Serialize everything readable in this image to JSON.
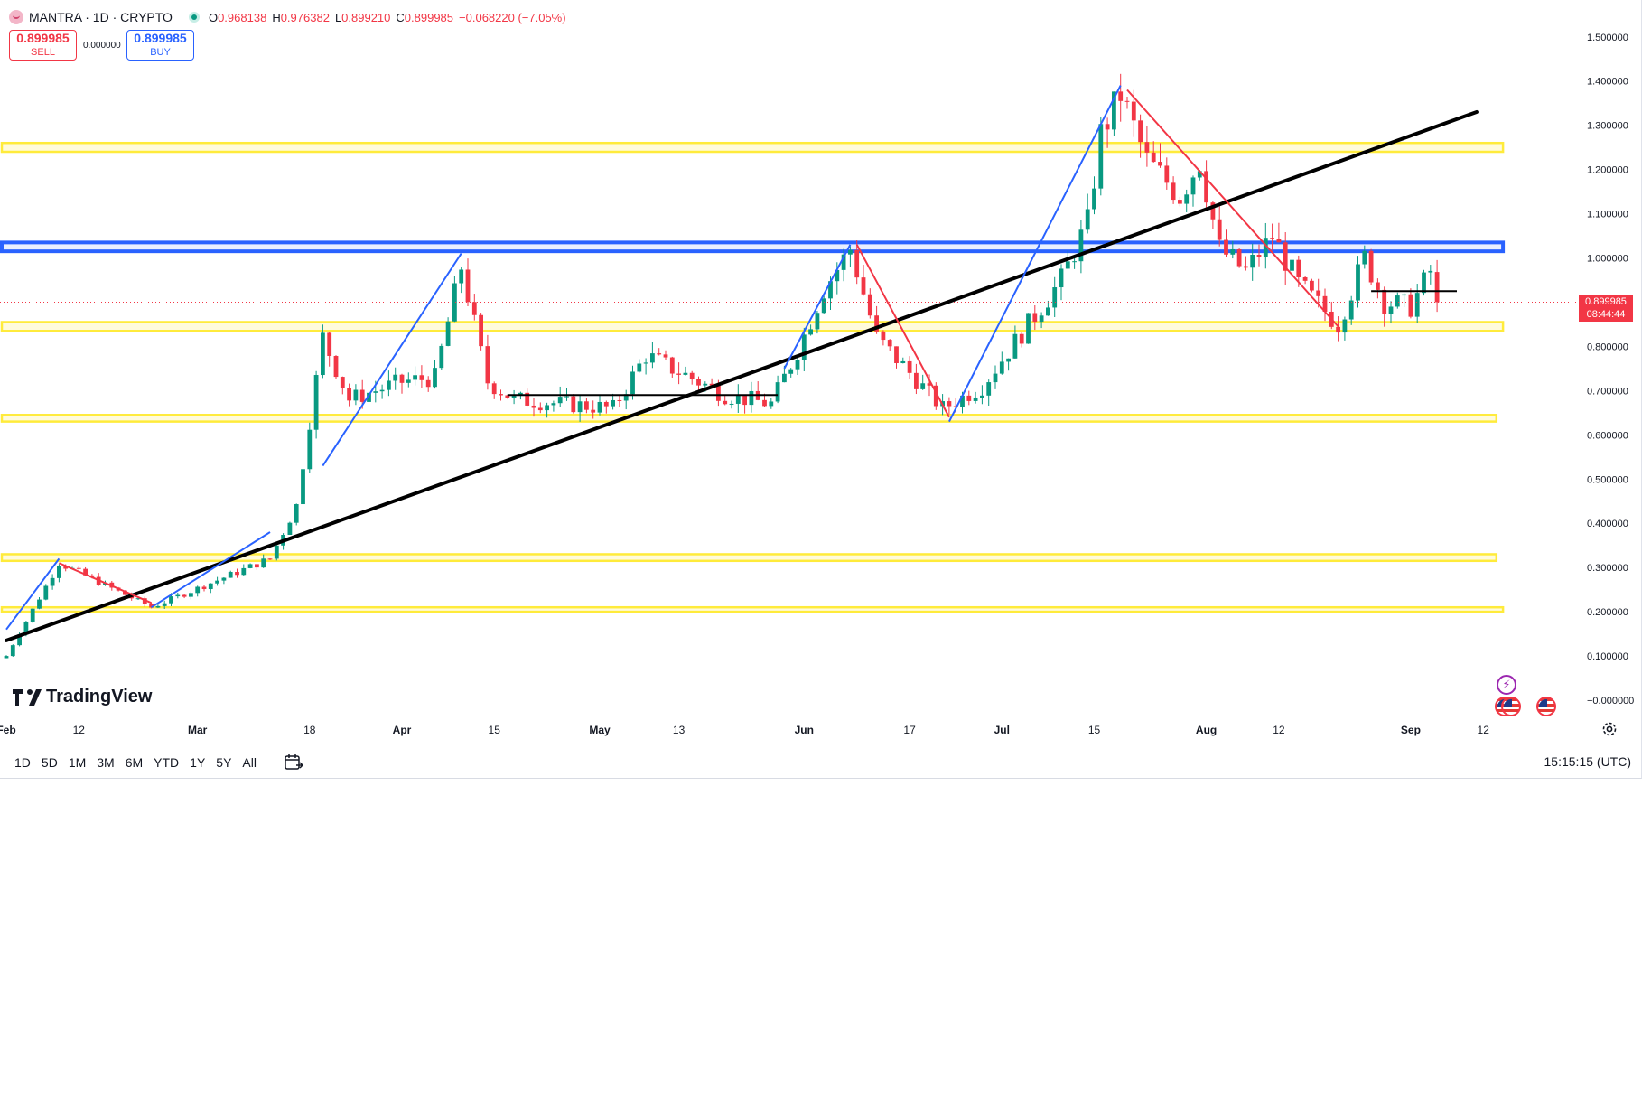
{
  "header": {
    "symbol": "MANTRA · 1D · CRYPTO",
    "ohlc": [
      {
        "k": "O",
        "v": "0.968138"
      },
      {
        "k": "H",
        "v": "0.976382"
      },
      {
        "k": "L",
        "v": "0.899210"
      },
      {
        "k": "C",
        "v": "0.899985"
      },
      {
        "k": "",
        "v": "−0.068220 (−7.05%)"
      }
    ]
  },
  "trade": {
    "sell_price": "0.899985",
    "sell_label": "SELL",
    "buy_price": "0.899985",
    "buy_label": "BUY",
    "spread": "0.000000"
  },
  "price_tag": {
    "price": "0.899985",
    "countdown": "08:44:44"
  },
  "logo": "TradingView",
  "toolbar": {
    "ranges": [
      "1D",
      "5D",
      "1M",
      "3M",
      "6M",
      "YTD",
      "1Y",
      "5Y",
      "All"
    ],
    "clock": "15:15:15 (UTC)"
  },
  "colors": {
    "up": "#089981",
    "down": "#f23645",
    "zone": "#ffeb3b",
    "resistance": "#2962ff",
    "trend": "#000000"
  },
  "icons": [
    "calendar-range-icon",
    "gear-icon",
    "lightning-event-icon",
    "us-flag-event-icon"
  ],
  "chart_data": {
    "type": "candlestick",
    "y_ticks": [
      "1.500000",
      "1.400000",
      "1.300000",
      "1.200000",
      "1.100000",
      "1.000000",
      "0.900000",
      "0.800000",
      "0.700000",
      "0.600000",
      "0.500000",
      "0.400000",
      "0.300000",
      "0.200000",
      "0.100000",
      "−0.000000"
    ],
    "ylim": [
      -0.05,
      1.55
    ],
    "x_ticks": [
      {
        "label": "Feb",
        "date": "2024-02-01"
      },
      {
        "label": "12",
        "date": "2024-02-12"
      },
      {
        "label": "Mar",
        "date": "2024-03-01"
      },
      {
        "label": "18",
        "date": "2024-03-18"
      },
      {
        "label": "Apr",
        "date": "2024-04-01"
      },
      {
        "label": "15",
        "date": "2024-04-15"
      },
      {
        "label": "May",
        "date": "2024-05-01"
      },
      {
        "label": "13",
        "date": "2024-05-13"
      },
      {
        "label": "Jun",
        "date": "2024-06-01"
      },
      {
        "label": "17",
        "date": "2024-06-17"
      },
      {
        "label": "Jul",
        "date": "2024-07-01"
      },
      {
        "label": "15",
        "date": "2024-07-15"
      },
      {
        "label": "Aug",
        "date": "2024-08-01"
      },
      {
        "label": "12",
        "date": "2024-08-12"
      },
      {
        "label": "Sep",
        "date": "2024-09-01"
      },
      {
        "label": "12",
        "date": "2024-09-12"
      }
    ],
    "last_price": 0.899985,
    "zones": [
      {
        "color": "zone",
        "y1": 1.24,
        "y2": 1.26,
        "to": "2024-09-15"
      },
      {
        "color": "resistance",
        "y1": 1.015,
        "y2": 1.035,
        "to": "2024-09-15"
      },
      {
        "color": "zone",
        "y1": 0.835,
        "y2": 0.855,
        "to": "2024-09-15"
      },
      {
        "color": "zone",
        "y1": 0.63,
        "y2": 0.645,
        "to": "2024-09-14"
      },
      {
        "color": "zone",
        "y1": 0.315,
        "y2": 0.33,
        "to": "2024-09-14"
      },
      {
        "color": "zone",
        "y1": 0.2,
        "y2": 0.21,
        "to": "2024-09-15"
      }
    ],
    "trendline": [
      {
        "date": "2024-02-01",
        "value": 0.135
      },
      {
        "date": "2024-09-11",
        "value": 1.33
      }
    ],
    "flat_lines": [
      {
        "from": "2024-04-17",
        "to": "2024-05-28",
        "value": 0.69
      },
      {
        "from": "2024-08-26",
        "to": "2024-09-08",
        "value": 0.925
      }
    ],
    "swing_up": [
      [
        {
          "date": "2024-02-01",
          "value": 0.16
        },
        {
          "date": "2024-02-09",
          "value": 0.32
        }
      ],
      [
        {
          "date": "2024-02-23",
          "value": 0.21
        },
        {
          "date": "2024-03-12",
          "value": 0.38
        }
      ],
      [
        {
          "date": "2024-03-20",
          "value": 0.53
        },
        {
          "date": "2024-04-10",
          "value": 1.01
        }
      ],
      [
        {
          "date": "2024-05-29",
          "value": 0.75
        },
        {
          "date": "2024-06-08",
          "value": 1.03
        }
      ],
      [
        {
          "date": "2024-06-23",
          "value": 0.63
        },
        {
          "date": "2024-07-19",
          "value": 1.39
        }
      ]
    ],
    "swing_down": [
      [
        {
          "date": "2024-02-09",
          "value": 0.31
        },
        {
          "date": "2024-02-23",
          "value": 0.22
        }
      ],
      [
        {
          "date": "2024-06-09",
          "value": 1.03
        },
        {
          "date": "2024-06-23",
          "value": 0.64
        }
      ],
      [
        {
          "date": "2024-07-20",
          "value": 1.38
        },
        {
          "date": "2024-08-21",
          "value": 0.845
        }
      ]
    ],
    "key_closes": [
      {
        "date": "2024-02-01",
        "value": 0.1
      },
      {
        "date": "2024-02-09",
        "value": 0.31
      },
      {
        "date": "2024-02-23",
        "value": 0.21
      },
      {
        "date": "2024-03-12",
        "value": 0.32
      },
      {
        "date": "2024-03-16",
        "value": 0.44
      },
      {
        "date": "2024-03-20",
        "value": 0.82
      },
      {
        "date": "2024-03-24",
        "value": 0.68
      },
      {
        "date": "2024-04-01",
        "value": 0.72
      },
      {
        "date": "2024-04-06",
        "value": 0.73
      },
      {
        "date": "2024-04-10",
        "value": 0.98
      },
      {
        "date": "2024-04-14",
        "value": 0.72
      },
      {
        "date": "2024-04-18",
        "value": 0.68
      },
      {
        "date": "2024-05-03",
        "value": 0.66
      },
      {
        "date": "2024-05-08",
        "value": 0.78
      },
      {
        "date": "2024-05-20",
        "value": 0.69
      },
      {
        "date": "2024-05-27",
        "value": 0.67
      },
      {
        "date": "2024-05-31",
        "value": 0.79
      },
      {
        "date": "2024-06-04",
        "value": 0.93
      },
      {
        "date": "2024-06-08",
        "value": 1.02
      },
      {
        "date": "2024-06-12",
        "value": 0.82
      },
      {
        "date": "2024-06-22",
        "value": 0.66
      },
      {
        "date": "2024-06-28",
        "value": 0.71
      },
      {
        "date": "2024-07-05",
        "value": 0.85
      },
      {
        "date": "2024-07-10",
        "value": 0.95
      },
      {
        "date": "2024-07-14",
        "value": 1.08
      },
      {
        "date": "2024-07-16",
        "value": 1.28
      },
      {
        "date": "2024-07-19",
        "value": 1.37
      },
      {
        "date": "2024-07-23",
        "value": 1.22
      },
      {
        "date": "2024-07-28",
        "value": 1.14
      },
      {
        "date": "2024-07-31",
        "value": 1.22
      },
      {
        "date": "2024-08-03",
        "value": 1.02
      },
      {
        "date": "2024-08-07",
        "value": 0.97
      },
      {
        "date": "2024-08-11",
        "value": 1.05
      },
      {
        "date": "2024-08-15",
        "value": 0.94
      },
      {
        "date": "2024-08-21",
        "value": 0.85
      },
      {
        "date": "2024-08-25",
        "value": 1.0
      },
      {
        "date": "2024-08-28",
        "value": 0.9
      },
      {
        "date": "2024-09-01",
        "value": 0.89
      },
      {
        "date": "2024-09-04",
        "value": 0.97
      },
      {
        "date": "2024-09-05",
        "value": 0.9
      }
    ]
  }
}
